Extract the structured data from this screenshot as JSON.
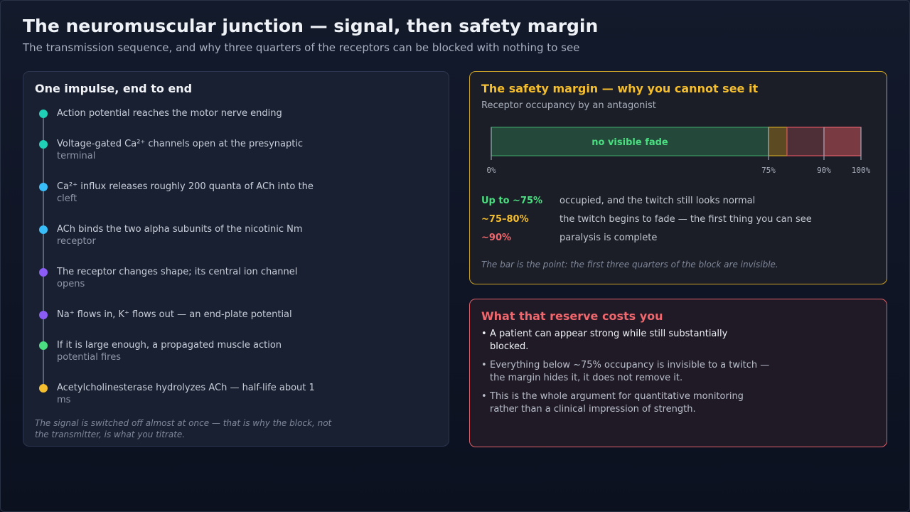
{
  "header": {
    "title": "The neuromuscular junction — signal, then safety margin",
    "subtitle": "The transmission sequence, and why three quarters of the receptors can be blocked with nothing to see"
  },
  "sequence": {
    "title": "One impulse, end to end",
    "steps": [
      {
        "line1": "Action potential reaches the motor nerve ending",
        "line2": "",
        "color": "#1fd1b6"
      },
      {
        "line1": "Voltage-gated Ca²⁺ channels open at the presynaptic",
        "line2": "terminal",
        "color": "#1fd1b6"
      },
      {
        "line1": "Ca²⁺ influx releases roughly 200 quanta of ACh into the",
        "line2": "cleft",
        "color": "#38bdf8"
      },
      {
        "line1": "ACh binds the two alpha subunits of the nicotinic Nm",
        "line2": "receptor",
        "color": "#38bdf8"
      },
      {
        "line1": "The receptor changes shape; its central ion channel",
        "line2": "opens",
        "color": "#8b5cf6"
      },
      {
        "line1": "Na⁺ flows in, K⁺ flows out — an end-plate potential",
        "line2": "",
        "color": "#8b5cf6"
      },
      {
        "line1": "If it is large enough, a propagated muscle action",
        "line2": "potential fires",
        "color": "#4ade80"
      },
      {
        "line1": "Acetylcholinesterase hydrolyzes ACh — half-life about 1",
        "line2": "ms",
        "color": "#f5be2e"
      }
    ],
    "note": "The signal is switched off almost at once — that is why the block, not the transmitter, is what you titrate."
  },
  "safety": {
    "title": "The safety margin — why you cannot see it",
    "subtitle": "Receptor occupancy by an antagonist",
    "bar_label": "no visible fade",
    "segments": [
      {
        "from": 0,
        "to": 75,
        "fill": "#24493b",
        "stroke": "#3c9a62"
      },
      {
        "from": 75,
        "to": 80,
        "fill": "#5c4a22",
        "stroke": "#c9a227"
      },
      {
        "from": 80,
        "to": 90,
        "fill": "#4e2f37",
        "stroke": "#d9545e"
      },
      {
        "from": 90,
        "to": 100,
        "fill": "#7a3a42",
        "stroke": "#e0606a"
      }
    ],
    "ticks": [
      "0%",
      "75%",
      "90%",
      "100%"
    ],
    "tick_values": [
      0,
      75,
      90,
      100
    ],
    "legend": [
      {
        "key": "Up to ~75%",
        "desc": "occupied, and the twitch still looks normal",
        "color": "#4ade80"
      },
      {
        "key": "~75–80%",
        "desc": "the twitch begins to fade — the first thing you can see",
        "color": "#f5be2e"
      },
      {
        "key": "~90%",
        "desc": "paralysis is complete",
        "color": "#f0676d"
      }
    ],
    "note": "The bar is the point: the first three quarters of the block are invisible."
  },
  "cost": {
    "title": "What that reserve costs you",
    "bullets": [
      {
        "line1": "A patient can appear strong while still substantially",
        "line2": "blocked.",
        "emphasis": true
      },
      {
        "line1": "Everything below ~75% occupancy is invisible to a twitch —",
        "line2": "the margin hides it, it does not remove it.",
        "emphasis": false
      },
      {
        "line1": "This is the whole argument for quantitative monitoring",
        "line2": "rather than a clinical impression of strength.",
        "emphasis": false
      }
    ]
  }
}
